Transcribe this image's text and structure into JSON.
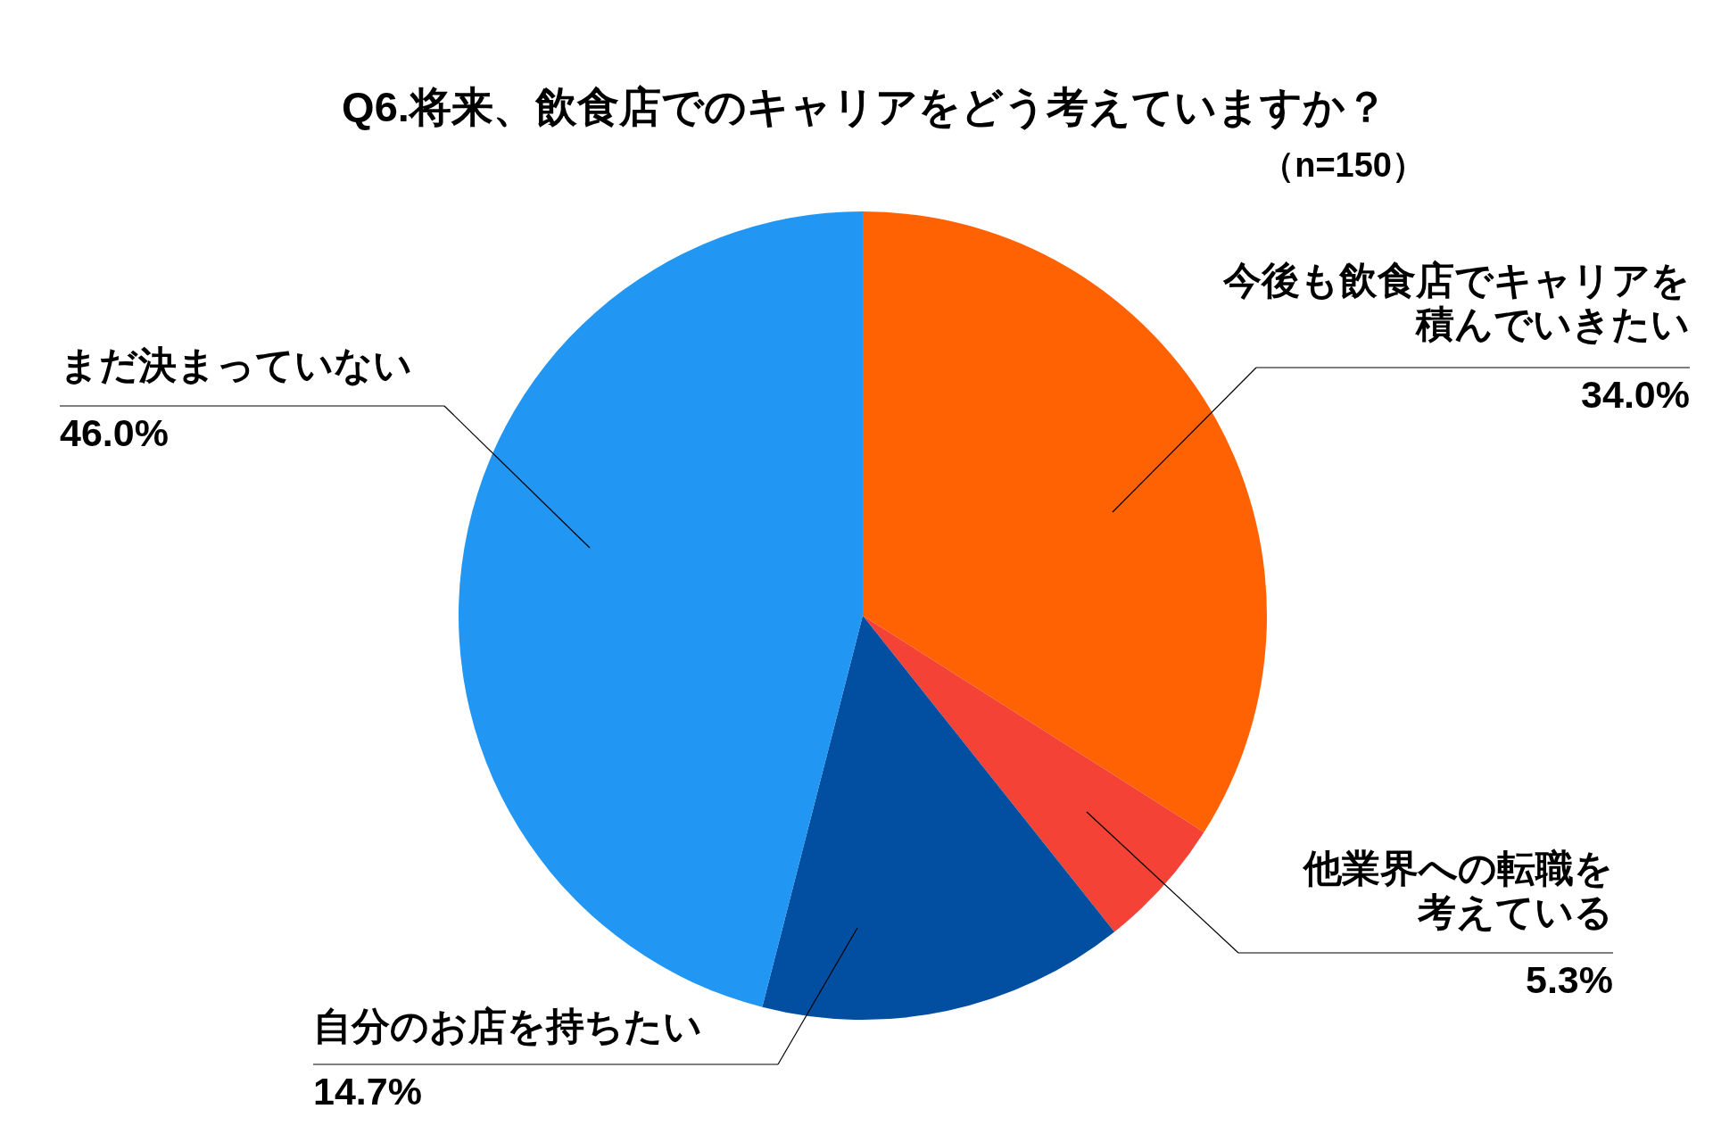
{
  "chart_data": {
    "type": "pie",
    "title": "Q6.将来、飲食店でのキャリアをどう考えていますか？",
    "subtitle": "（n=150）",
    "categories": [
      "今後も飲食店でキャリアを積んでいきたい",
      "他業界への転職を考えている",
      "自分のお店を持ちたい",
      "まだ決まっていない"
    ],
    "values": [
      34.0,
      5.3,
      14.7,
      46.0
    ],
    "value_labels": [
      "34.0%",
      "5.3%",
      "14.7%",
      "46.0%"
    ],
    "colors": [
      "#ff6203",
      "#f44336",
      "#024ea0",
      "#2196f2"
    ]
  }
}
